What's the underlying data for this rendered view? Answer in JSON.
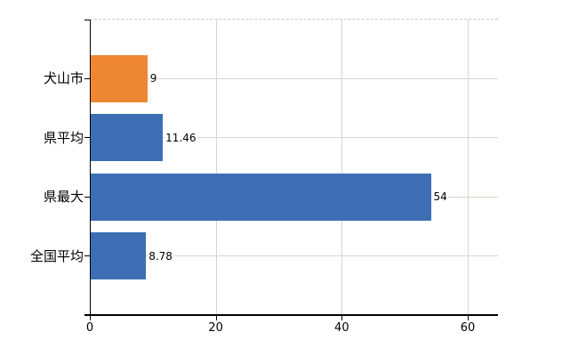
{
  "chart_data": {
    "type": "bar",
    "orientation": "horizontal",
    "categories": [
      "犬山市",
      "県平均",
      "県最大",
      "全国平均"
    ],
    "values": [
      9,
      11.46,
      54,
      8.78
    ],
    "data_labels": [
      "9",
      "11.46",
      "54",
      "8.78"
    ],
    "bar_colors": [
      "#ee8733",
      "#3d6eb4",
      "#3d6eb4",
      "#3d6eb4"
    ],
    "x_ticks": [
      0,
      20,
      40,
      60
    ],
    "x_tick_labels": [
      "0",
      "20",
      "40",
      "60"
    ],
    "xlim": [
      0,
      64.7
    ],
    "grid": true,
    "legend": false
  },
  "colors": {
    "bar_highlight": "#ee8733",
    "bar_default": "#3d6eb4",
    "gridline": "#d2d8d0",
    "top_border": "#c9c9c9",
    "axis": "#000000",
    "text": "#000000",
    "background": "#ffffff"
  }
}
